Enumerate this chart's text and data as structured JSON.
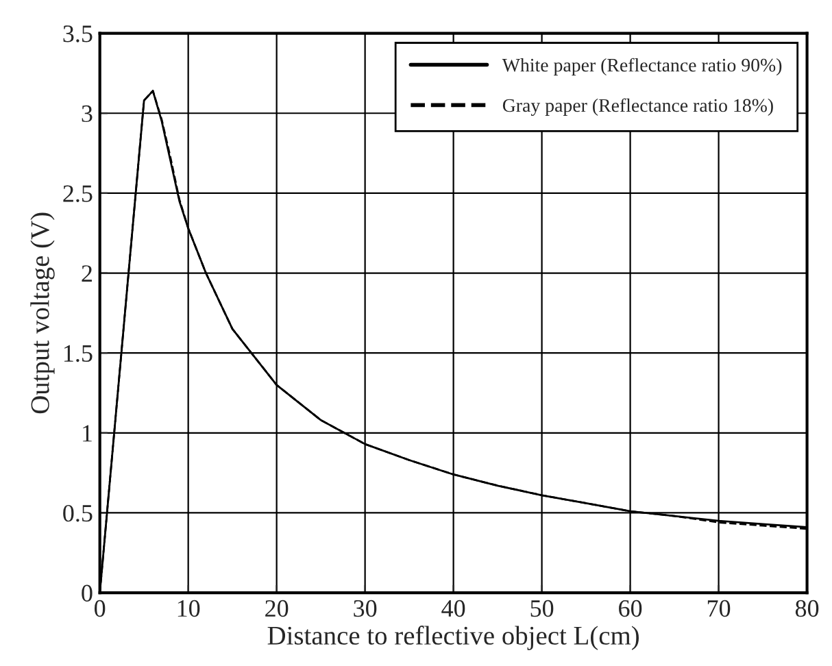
{
  "chart_data": {
    "type": "line",
    "xlabel": "Distance to reflective object L(cm)",
    "ylabel": "Output voltage (V)",
    "x": [
      0,
      5,
      6,
      7,
      8,
      9,
      10,
      12,
      15,
      20,
      25,
      30,
      35,
      40,
      45,
      50,
      55,
      60,
      65,
      70,
      75,
      80
    ],
    "series": [
      {
        "name": "White paper (Reflectance ratio 90%)",
        "color": "#000000",
        "line_style": "solid",
        "values": [
          0,
          3.08,
          3.14,
          2.95,
          2.7,
          2.45,
          2.28,
          2.0,
          1.65,
          1.3,
          1.08,
          0.93,
          0.83,
          0.74,
          0.67,
          0.61,
          0.56,
          0.51,
          0.48,
          0.45,
          0.43,
          0.41
        ]
      },
      {
        "name": "Gray paper (Reflectance ratio 18%)",
        "color": "#000000",
        "line_style": "dashed",
        "values": [
          0,
          3.08,
          3.14,
          2.96,
          2.72,
          2.46,
          2.28,
          2.0,
          1.65,
          1.3,
          1.08,
          0.93,
          0.83,
          0.74,
          0.67,
          0.61,
          0.56,
          0.51,
          0.48,
          0.44,
          0.42,
          0.4
        ]
      }
    ],
    "xlim": [
      0,
      80
    ],
    "xticks": [
      0,
      10,
      20,
      30,
      40,
      50,
      60,
      70,
      80
    ],
    "ylim": [
      0,
      3.5
    ],
    "yticks": [
      0,
      0.5,
      1,
      1.5,
      2,
      2.5,
      3,
      3.5
    ],
    "grid": true,
    "legend": "top right",
    "marker": "none"
  }
}
